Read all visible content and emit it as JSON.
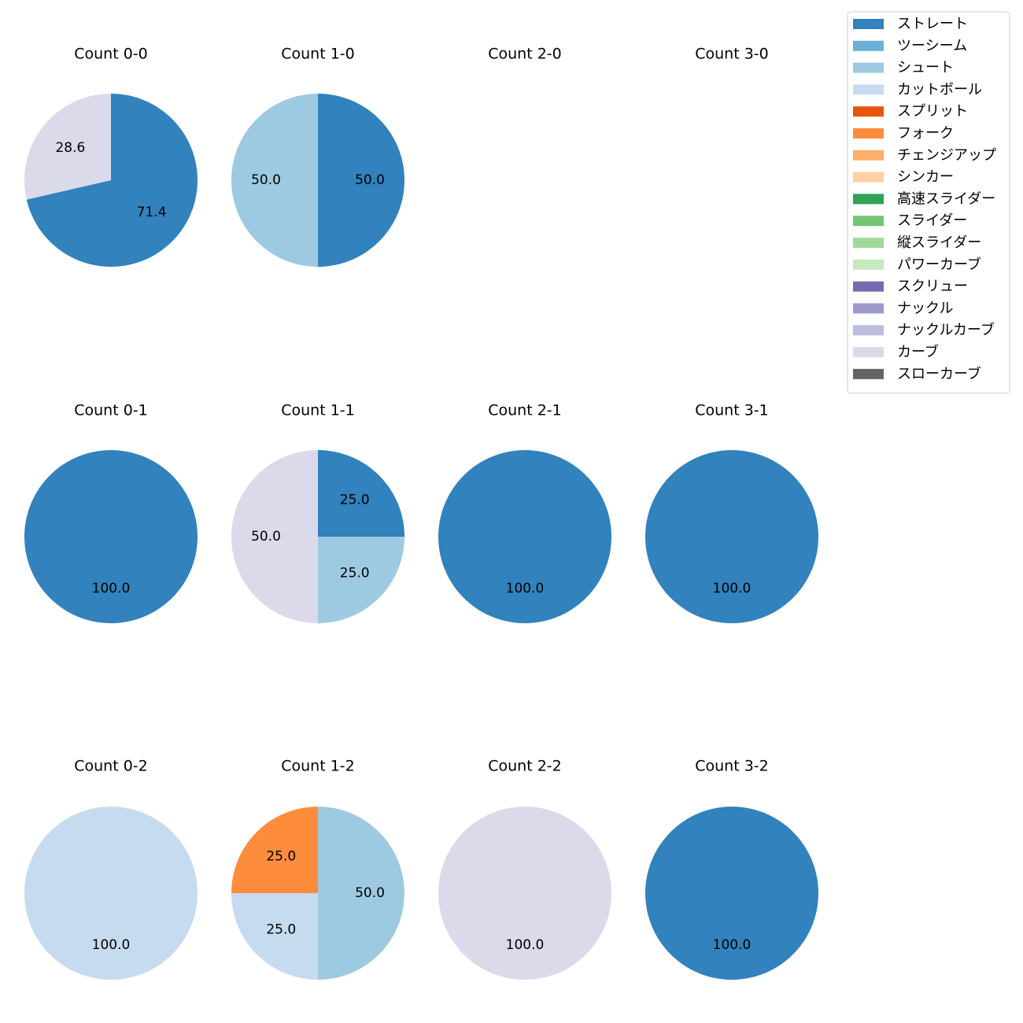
{
  "chart_data": {
    "type": "pie",
    "legend": {
      "placement": "top-right",
      "entries": [
        {
          "name": "ストレート",
          "color": "#3182bd"
        },
        {
          "name": "ツーシーム",
          "color": "#6baed6"
        },
        {
          "name": "シュート",
          "color": "#9ecae1"
        },
        {
          "name": "カットボール",
          "color": "#c6dbef"
        },
        {
          "name": "スプリット",
          "color": "#e6550d"
        },
        {
          "name": "フォーク",
          "color": "#fd8d3c"
        },
        {
          "name": "チェンジアップ",
          "color": "#fdae6b"
        },
        {
          "name": "シンカー",
          "color": "#fdd0a2"
        },
        {
          "name": "高速スライダー",
          "color": "#31a354"
        },
        {
          "name": "スライダー",
          "color": "#74c476"
        },
        {
          "name": "縦スライダー",
          "color": "#a1d99b"
        },
        {
          "name": "パワーカーブ",
          "color": "#c7e9c0"
        },
        {
          "name": "スクリュー",
          "color": "#756bb1"
        },
        {
          "name": "ナックル",
          "color": "#9e9ac8"
        },
        {
          "name": "ナックルカーブ",
          "color": "#bcbddc"
        },
        {
          "name": "カーブ",
          "color": "#dadaeb"
        },
        {
          "name": "スローカーブ",
          "color": "#636363"
        }
      ]
    },
    "pies": [
      {
        "title": "Count 0-0",
        "slices": [
          {
            "pitch": "ストレート",
            "value": 71.4
          },
          {
            "pitch": "カーブ",
            "value": 28.6
          }
        ]
      },
      {
        "title": "Count 1-0",
        "slices": [
          {
            "pitch": "ストレート",
            "value": 50.0
          },
          {
            "pitch": "シュート",
            "value": 50.0
          }
        ]
      },
      {
        "title": "Count 2-0",
        "slices": []
      },
      {
        "title": "Count 3-0",
        "slices": []
      },
      {
        "title": "Count 0-1",
        "slices": [
          {
            "pitch": "ストレート",
            "value": 100.0
          }
        ]
      },
      {
        "title": "Count 1-1",
        "slices": [
          {
            "pitch": "ストレート",
            "value": 25.0
          },
          {
            "pitch": "シュート",
            "value": 25.0
          },
          {
            "pitch": "カーブ",
            "value": 50.0
          }
        ]
      },
      {
        "title": "Count 2-1",
        "slices": [
          {
            "pitch": "ストレート",
            "value": 100.0
          }
        ]
      },
      {
        "title": "Count 3-1",
        "slices": [
          {
            "pitch": "ストレート",
            "value": 100.0
          }
        ]
      },
      {
        "title": "Count 0-2",
        "slices": [
          {
            "pitch": "カットボール",
            "value": 100.0
          }
        ]
      },
      {
        "title": "Count 1-2",
        "slices": [
          {
            "pitch": "シュート",
            "value": 50.0
          },
          {
            "pitch": "カットボール",
            "value": 25.0
          },
          {
            "pitch": "フォーク",
            "value": 25.0
          }
        ]
      },
      {
        "title": "Count 2-2",
        "slices": [
          {
            "pitch": "カーブ",
            "value": 100.0
          }
        ]
      },
      {
        "title": "Count 3-2",
        "slices": [
          {
            "pitch": "ストレート",
            "value": 100.0
          }
        ]
      }
    ]
  }
}
